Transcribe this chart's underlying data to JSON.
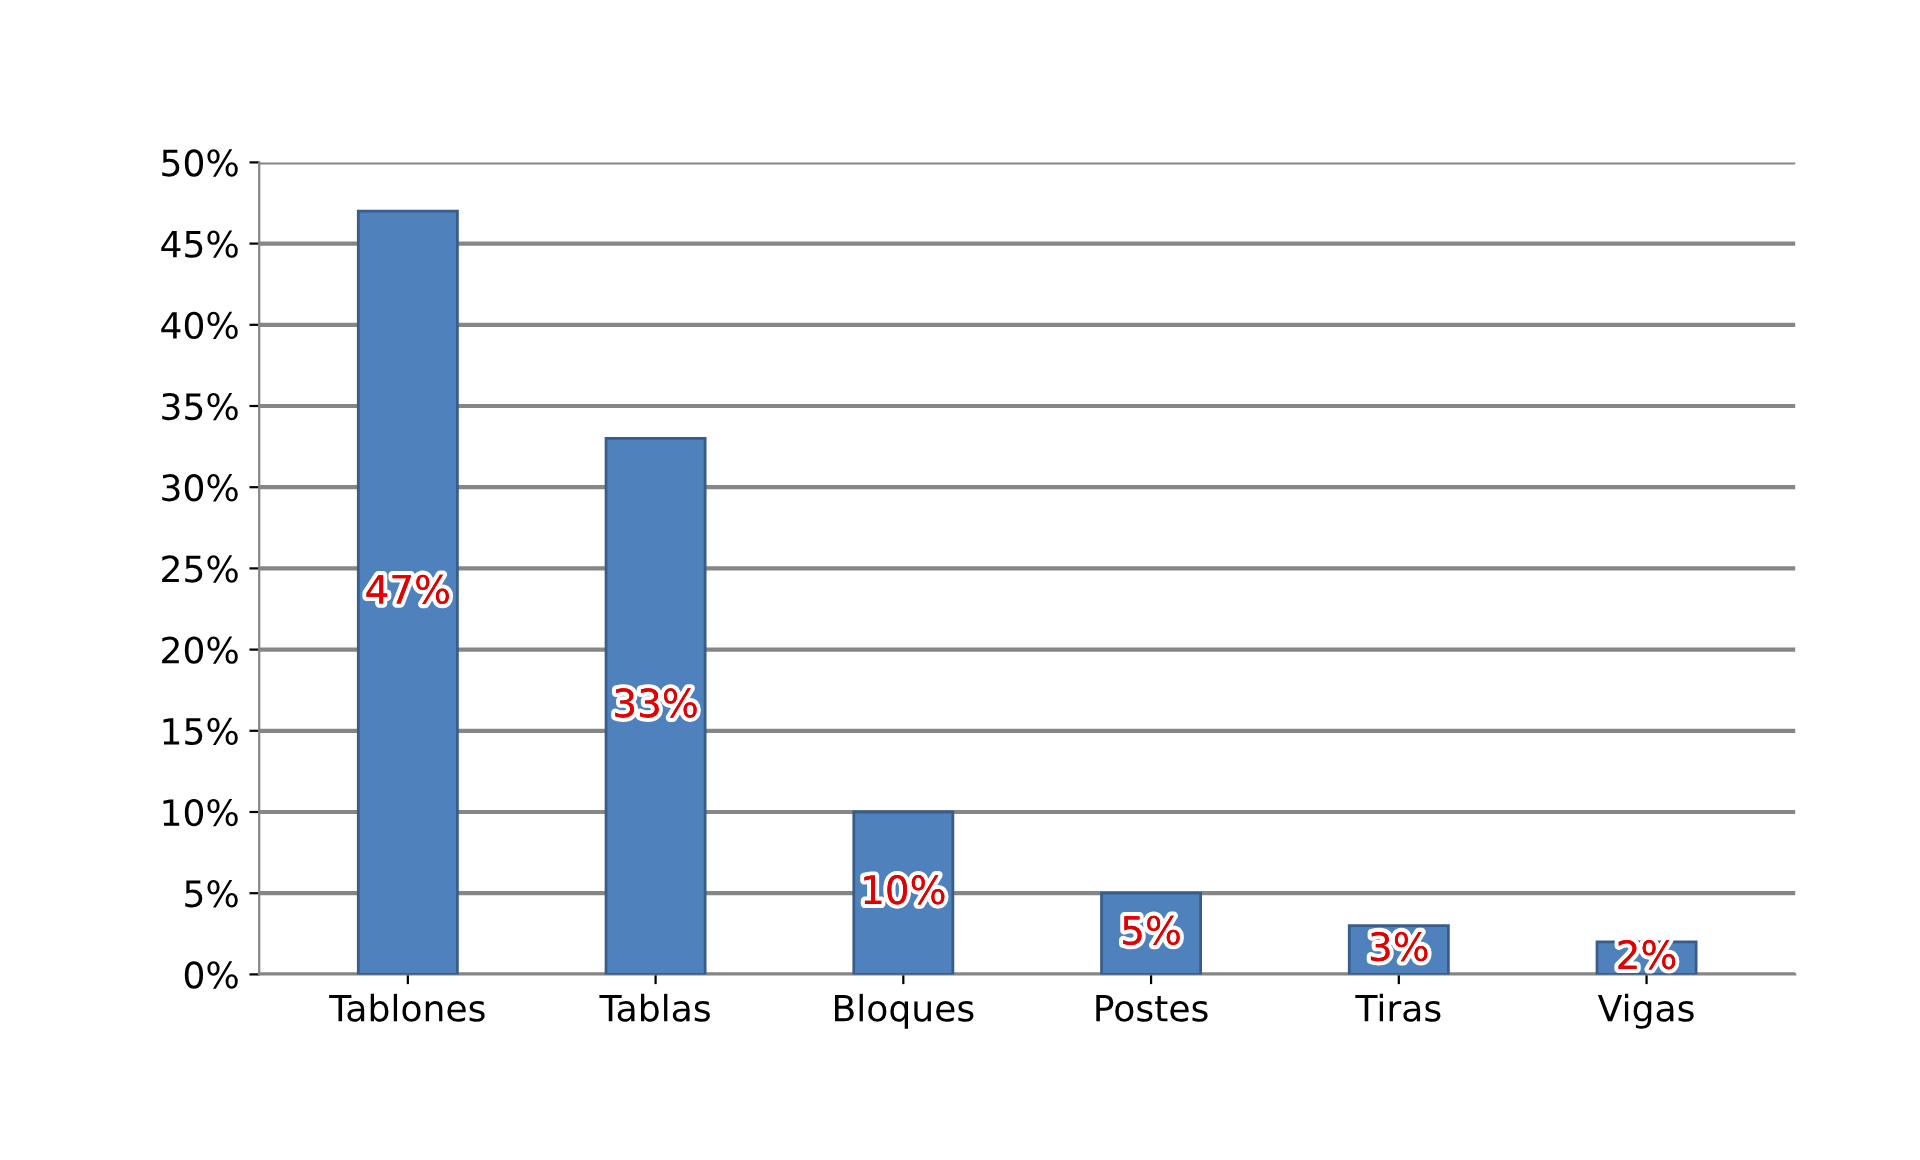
{
  "chart_data": {
    "type": "bar",
    "categories": [
      "Tablones",
      "Tablas",
      "Bloques",
      "Postes",
      "Tiras",
      "Vigas"
    ],
    "values": [
      47,
      33,
      10,
      5,
      3,
      2
    ],
    "value_labels": [
      "47%",
      "33%",
      "10%",
      "5%",
      "3%",
      "2%"
    ],
    "color": "#4f81bd",
    "ylim": [
      0,
      50
    ],
    "yticks": [
      {
        "value": 0,
        "label": "0%"
      },
      {
        "value": 5,
        "label": "5%"
      },
      {
        "value": 10,
        "label": "10%"
      },
      {
        "value": 15,
        "label": "15%"
      },
      {
        "value": 20,
        "label": "20%"
      },
      {
        "value": 25,
        "label": "25%"
      },
      {
        "value": 30,
        "label": "30%"
      },
      {
        "value": 35,
        "label": "35%"
      },
      {
        "value": 40,
        "label": "40%"
      },
      {
        "value": 45,
        "label": "45%"
      },
      {
        "value": 50,
        "label": "50%"
      }
    ],
    "grid": "y"
  }
}
